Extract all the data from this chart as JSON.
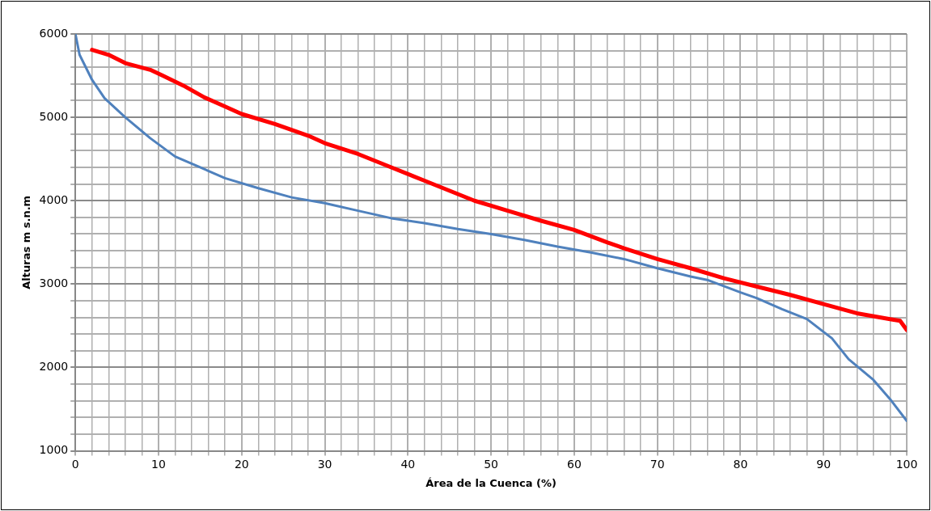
{
  "chart_data": {
    "type": "line",
    "xlabel": "Área de la Cuenca (%)",
    "ylabel": "Alturas m s.n.m",
    "xlim": [
      0,
      100
    ],
    "ylim": [
      1000,
      6000
    ],
    "xticks": [
      0,
      {
        "value": 2,
        "label": null
      },
      {
        "value": 4,
        "label": null
      },
      {
        "value": 6,
        "label": null
      },
      {
        "value": 8,
        "label": null
      },
      10,
      {
        "value": 12,
        "label": null
      },
      {
        "value": 14,
        "label": null
      },
      {
        "value": 16,
        "label": null
      },
      {
        "value": 18,
        "label": null
      },
      20,
      {
        "value": 22,
        "label": null
      },
      {
        "value": 24,
        "label": null
      },
      {
        "value": 26,
        "label": null
      },
      {
        "value": 28,
        "label": null
      },
      30,
      {
        "value": 32,
        "label": null
      },
      {
        "value": 34,
        "label": null
      },
      {
        "value": 36,
        "label": null
      },
      {
        "value": 38,
        "label": null
      },
      40,
      {
        "value": 42,
        "label": null
      },
      {
        "value": 44,
        "label": null
      },
      {
        "value": 46,
        "label": null
      },
      {
        "value": 48,
        "label": null
      },
      50,
      {
        "value": 52,
        "label": null
      },
      {
        "value": 54,
        "label": null
      },
      {
        "value": 56,
        "label": null
      },
      {
        "value": 58,
        "label": null
      },
      60,
      {
        "value": 62,
        "label": null
      },
      {
        "value": 64,
        "label": null
      },
      {
        "value": 66,
        "label": null
      },
      {
        "value": 68,
        "label": null
      },
      70,
      {
        "value": 72,
        "label": null
      },
      {
        "value": 74,
        "label": null
      },
      {
        "value": 76,
        "label": null
      },
      {
        "value": 78,
        "label": null
      },
      80,
      {
        "value": 82,
        "label": null
      },
      {
        "value": 84,
        "label": null
      },
      {
        "value": 86,
        "label": null
      },
      {
        "value": 88,
        "label": null
      },
      90,
      {
        "value": 92,
        "label": null
      },
      {
        "value": 94,
        "label": null
      },
      {
        "value": 96,
        "label": null
      },
      {
        "value": 98,
        "label": null
      },
      100
    ],
    "yticks": [
      1000,
      {
        "value": 1200,
        "label": null
      },
      {
        "value": 1400,
        "label": null
      },
      {
        "value": 1600,
        "label": null
      },
      {
        "value": 1800,
        "label": null
      },
      2000,
      {
        "value": 2200,
        "label": null
      },
      {
        "value": 2400,
        "label": null
      },
      {
        "value": 2600,
        "label": null
      },
      {
        "value": 2800,
        "label": null
      },
      3000,
      {
        "value": 3200,
        "label": null
      },
      {
        "value": 3400,
        "label": null
      },
      {
        "value": 3600,
        "label": null
      },
      {
        "value": 3800,
        "label": null
      },
      4000,
      {
        "value": 4200,
        "label": null
      },
      {
        "value": 4400,
        "label": null
      },
      {
        "value": 4600,
        "label": null
      },
      {
        "value": 4800,
        "label": null
      },
      5000,
      {
        "value": 5200,
        "label": null
      },
      {
        "value": 5400,
        "label": null
      },
      {
        "value": 5600,
        "label": null
      },
      {
        "value": 5800,
        "label": null
      },
      6000
    ],
    "grid": true,
    "marker": "none",
    "line_style": "solid",
    "legend": false,
    "series": [
      {
        "color": "#4f81bd",
        "x": [
          0,
          0.5,
          2,
          3.5,
          6,
          9,
          12,
          15,
          18,
          22,
          26,
          30,
          34,
          38,
          42,
          46,
          50,
          54,
          58,
          62,
          66,
          70,
          74,
          76,
          80,
          82,
          85,
          88,
          91,
          93,
          96,
          98,
          100
        ],
        "values": [
          6000,
          5750,
          5450,
          5230,
          5000,
          4750,
          4530,
          4400,
          4270,
          4150,
          4040,
          3970,
          3880,
          3790,
          3730,
          3660,
          3600,
          3530,
          3450,
          3380,
          3300,
          3190,
          3090,
          3050,
          2900,
          2830,
          2700,
          2580,
          2350,
          2100,
          1850,
          1620,
          1360
        ]
      },
      {
        "color": "#ff0000",
        "x": [
          2,
          4,
          6,
          9,
          10.5,
          13,
          15.5,
          18,
          20,
          24,
          28,
          30,
          34,
          38,
          42,
          44,
          48,
          52,
          56,
          60,
          64,
          66,
          70,
          74,
          78,
          82,
          86,
          90,
          94,
          98,
          99.2,
          100
        ],
        "values": [
          5810,
          5750,
          5650,
          5570,
          5500,
          5380,
          5240,
          5130,
          5040,
          4920,
          4780,
          4690,
          4560,
          4400,
          4240,
          4160,
          4000,
          3880,
          3760,
          3650,
          3500,
          3430,
          3300,
          3190,
          3070,
          2970,
          2870,
          2760,
          2650,
          2580,
          2560,
          2450
        ]
      }
    ]
  }
}
